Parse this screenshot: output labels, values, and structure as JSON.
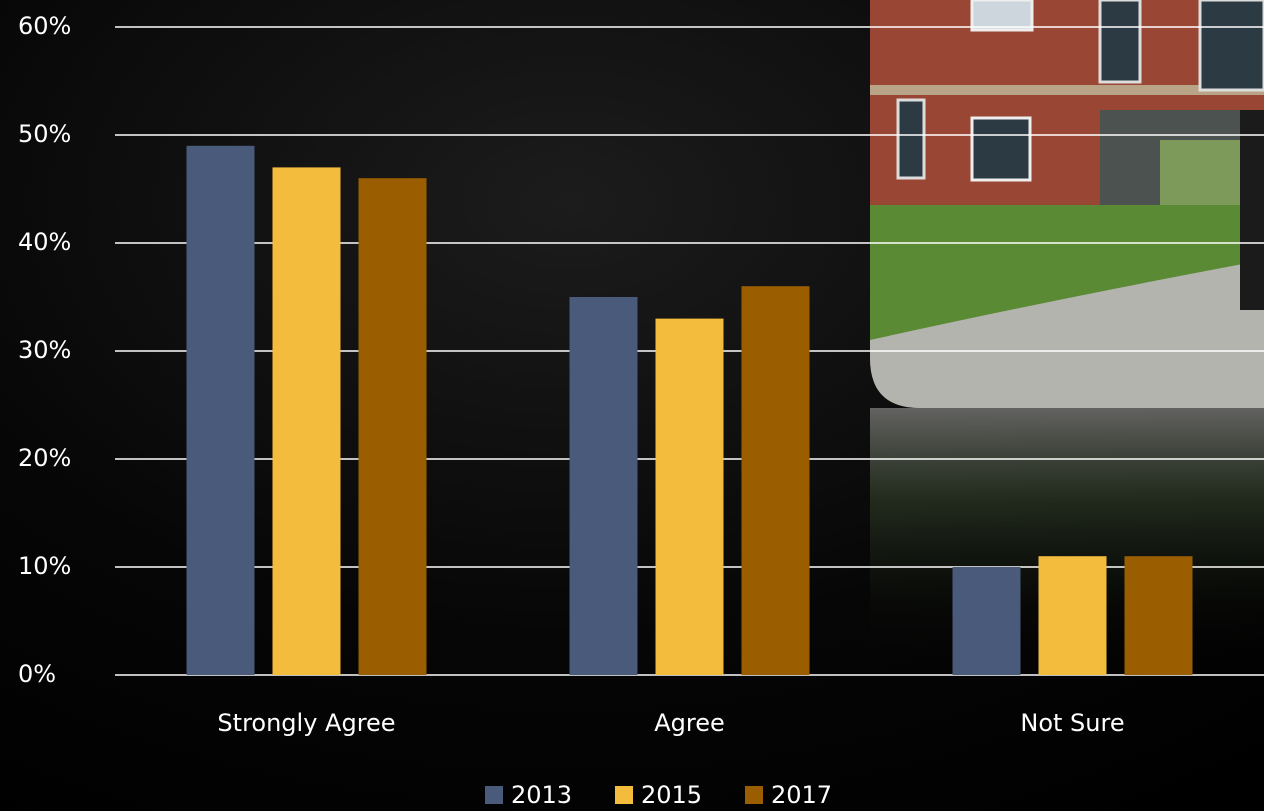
{
  "chart_data": {
    "type": "bar",
    "categories": [
      "Strongly Agree",
      "Agree",
      "Not Sure"
    ],
    "series": [
      {
        "name": "2013",
        "color": "#4a5a7a",
        "values": [
          49,
          35,
          10
        ]
      },
      {
        "name": "2015",
        "color": "#f4bc3c",
        "values": [
          47,
          33,
          11
        ]
      },
      {
        "name": "2017",
        "color": "#9a5e00",
        "values": [
          46,
          36,
          11
        ]
      }
    ],
    "ylim": [
      0,
      60
    ],
    "yticks": [
      {
        "value": 0,
        "label": "0%"
      },
      {
        "value": 10,
        "label": "10%"
      },
      {
        "value": 20,
        "label": "20%"
      },
      {
        "value": 30,
        "label": "30%"
      },
      {
        "value": 40,
        "label": "40%"
      },
      {
        "value": 50,
        "label": "50%"
      },
      {
        "value": 60,
        "label": "60%"
      }
    ],
    "grid": true,
    "legend": "bottom"
  }
}
